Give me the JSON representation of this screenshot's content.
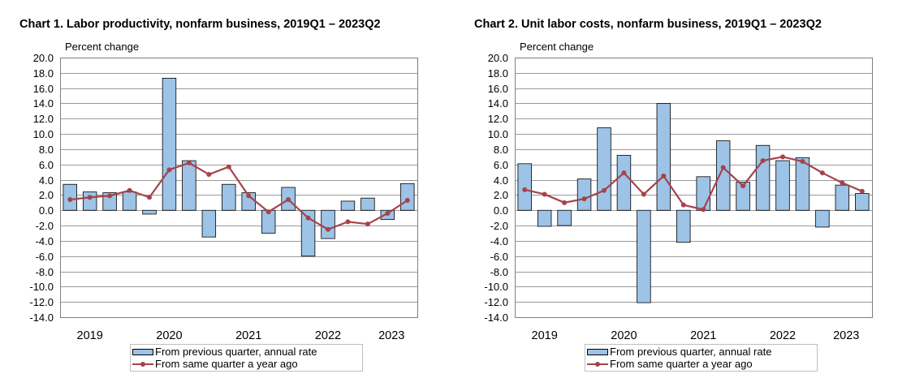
{
  "chart_data": [
    {
      "type": "bar",
      "title": "Chart  1. Labor productivity, nonfarm business, 2019Q1 – 2023Q2",
      "ylabel": "Percent change",
      "xlabel": "",
      "ylim": [
        -14,
        20
      ],
      "ytick_step": 2,
      "year_labels": [
        "2019",
        "2020",
        "2021",
        "2022",
        "2023"
      ],
      "categories": [
        "2019Q1",
        "2019Q2",
        "2019Q3",
        "2019Q4",
        "2020Q1",
        "2020Q2",
        "2020Q3",
        "2020Q4",
        "2021Q1",
        "2021Q2",
        "2021Q3",
        "2021Q4",
        "2022Q1",
        "2022Q2",
        "2022Q3",
        "2022Q4",
        "2023Q1",
        "2023Q2"
      ],
      "series": [
        {
          "name": "From previous quarter, annual rate",
          "kind": "bar",
          "color": "#9dc3e6",
          "values": [
            3.4,
            2.4,
            2.3,
            2.4,
            -0.5,
            17.3,
            6.5,
            -3.5,
            3.4,
            2.3,
            -3.0,
            3.0,
            -6.0,
            -3.7,
            1.2,
            1.6,
            -1.2,
            3.5
          ]
        },
        {
          "name": "From same quarter a year ago",
          "kind": "line",
          "color": "#a5434b",
          "values": [
            1.4,
            1.7,
            1.9,
            2.6,
            1.7,
            5.3,
            6.2,
            4.7,
            5.7,
            1.9,
            -0.2,
            1.4,
            -1.0,
            -2.5,
            -1.5,
            -1.8,
            -0.4,
            1.3
          ]
        }
      ],
      "legend": [
        "From previous quarter, annual rate",
        "From same quarter a year ago"
      ]
    },
    {
      "type": "bar",
      "title": "Chart  2. Unit labor costs, nonfarm business, 2019Q1 – 2023Q2",
      "ylabel": "Percent change",
      "xlabel": "",
      "ylim": [
        -14,
        20
      ],
      "ytick_step": 2,
      "year_labels": [
        "2019",
        "2020",
        "2021",
        "2022",
        "2023"
      ],
      "categories": [
        "2019Q1",
        "2019Q2",
        "2019Q3",
        "2019Q4",
        "2020Q1",
        "2020Q2",
        "2020Q3",
        "2020Q4",
        "2021Q1",
        "2021Q2",
        "2021Q3",
        "2021Q4",
        "2022Q1",
        "2022Q2",
        "2022Q3",
        "2022Q4",
        "2023Q1",
        "2023Q2"
      ],
      "series": [
        {
          "name": "From previous quarter, annual rate",
          "kind": "bar",
          "color": "#9dc3e6",
          "values": [
            6.1,
            -2.1,
            -2.0,
            4.1,
            10.8,
            7.2,
            -12.1,
            14.0,
            -4.2,
            4.4,
            9.1,
            3.7,
            8.5,
            6.5,
            6.9,
            -2.2,
            3.3,
            2.2
          ]
        },
        {
          "name": "From same quarter a year ago",
          "kind": "line",
          "color": "#a5434b",
          "values": [
            2.7,
            2.1,
            1.0,
            1.5,
            2.6,
            4.9,
            2.1,
            4.5,
            0.7,
            0.1,
            5.6,
            3.2,
            6.5,
            7.0,
            6.4,
            4.9,
            3.6,
            2.5
          ]
        }
      ],
      "legend": [
        "From previous quarter, annual rate",
        "From same quarter a year ago"
      ]
    }
  ]
}
